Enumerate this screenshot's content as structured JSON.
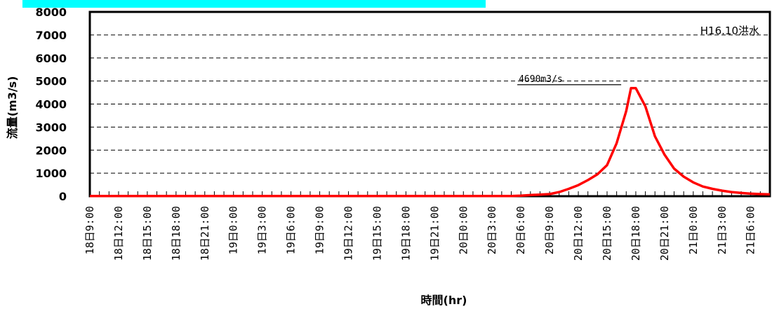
{
  "chart_data": {
    "type": "line",
    "xlabel": "時間(hr)",
    "ylabel": "流量(m3/s)",
    "ylim": [
      0,
      8000
    ],
    "yticks": [
      0,
      1000,
      2000,
      3000,
      4000,
      5000,
      6000,
      7000,
      8000
    ],
    "grid": "horizontal-dashed",
    "x_tick_labels": [
      "18日9:00",
      "18日12:00",
      "18日15:00",
      "18日18:00",
      "18日21:00",
      "19日0:00",
      "19日3:00",
      "19日6:00",
      "19日9:00",
      "19日12:00",
      "19日15:00",
      "19日18:00",
      "19日21:00",
      "20日0:00",
      "20日3:00",
      "20日6:00",
      "20日9:00",
      "20日12:00",
      "20日15:00",
      "20日18:00",
      "20日21:00",
      "21日0:00",
      "21日3:00",
      "21日6:00"
    ],
    "x_unit": "hours since 18日9:00",
    "xlim": [
      0,
      71
    ],
    "series": [
      {
        "color": "#ff0000",
        "x": [
          0,
          18,
          36,
          44,
          45,
          46,
          47,
          48,
          49,
          50,
          51,
          52,
          53,
          54,
          55,
          56,
          56.5,
          57,
          58,
          59,
          60,
          61,
          62,
          63,
          64,
          65,
          66,
          67,
          68,
          69,
          70,
          71
        ],
        "y": [
          10,
          10,
          10,
          10,
          20,
          50,
          70,
          90,
          180,
          320,
          480,
          700,
          950,
          1350,
          2300,
          3700,
          4690,
          4690,
          3900,
          2600,
          1800,
          1200,
          850,
          600,
          420,
          320,
          240,
          180,
          140,
          110,
          90,
          80
        ]
      }
    ],
    "annotations": [
      {
        "text": "4690m3/s",
        "x": 56.5,
        "y": 4690
      },
      {
        "text": "H16.10洪水",
        "position": "top-right"
      }
    ]
  }
}
